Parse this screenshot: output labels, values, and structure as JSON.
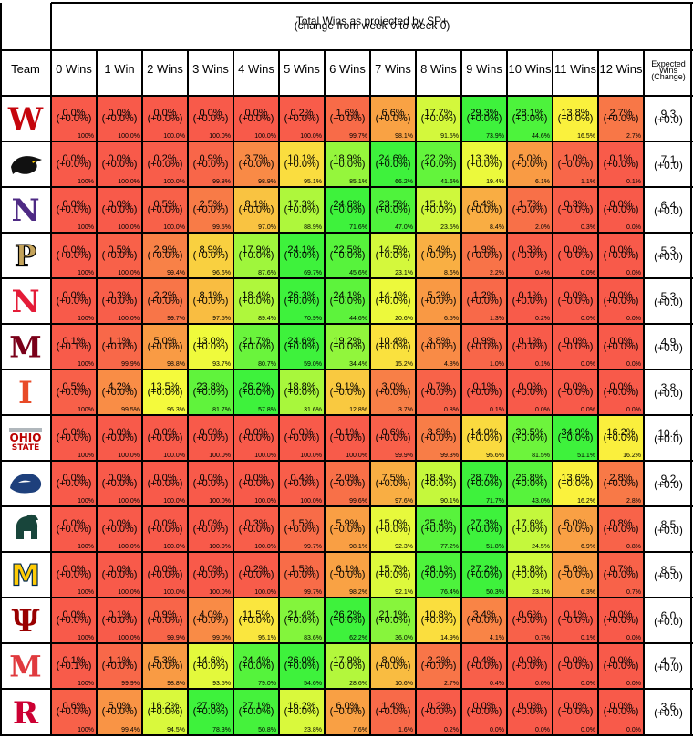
{
  "chart_data": {
    "type": "table",
    "title": "Total Wins as projected by SP+",
    "subtitle": "(change from week 0 to week 0)",
    "team_header": "Team",
    "expected_header": [
      "Expected",
      "Wins",
      "(Change)"
    ],
    "columns": [
      "0 Wins",
      "1 Win",
      "2 Wins",
      "3 Wins",
      "4 Wins",
      "5 Wins",
      "6 Wins",
      "7 Wins",
      "8 Wins",
      "9 Wins",
      "10 Wins",
      "11 Wins",
      "12 Wins"
    ],
    "colors": {
      "low": "#f85a4a",
      "high": "#3ef23c",
      "mid": "#fafa3c",
      "grid": "#000000",
      "background": "#ffffff"
    },
    "teams": [
      {
        "name": "Wisconsin",
        "logo": "W",
        "logo_color": "#c5050c",
        "logo_icon": "wisconsin-logo-icon",
        "pct": [
          "0.0%",
          "0.0%",
          "0.0%",
          "0.0%",
          "0.0%",
          "0.2%",
          "1.6%",
          "6.6%",
          "17.7%",
          "29.3%",
          "28.1%",
          "13.8%",
          "2.7%"
        ],
        "chg": [
          "(+0.0%)",
          "(+0.0%)",
          "(+0.0%)",
          "(+0.0%)",
          "(+0.0%)",
          "(+0.0%)",
          "(+0.0%)",
          "(+0.0%)",
          "(+0.0%)",
          "(+0.0%)",
          "(+0.0%)",
          "(+0.0%)",
          "(+0.0%)"
        ],
        "cum": [
          "100%",
          "100.0%",
          "100.0%",
          "100.0%",
          "100.0%",
          "100.0%",
          "99.7%",
          "98.1%",
          "91.5%",
          "73.9%",
          "44.6%",
          "16.5%",
          "2.7%"
        ],
        "values": [
          0.0,
          0.0,
          0.0,
          0.0,
          0.0,
          0.2,
          1.6,
          6.6,
          17.7,
          29.3,
          28.1,
          13.8,
          2.7
        ],
        "expected": "9.3",
        "expected_change": "(+0.0)"
      },
      {
        "name": "Iowa",
        "logo": "hawk",
        "logo_color": "#111111",
        "logo_icon": "iowa-hawkeye-logo-icon",
        "pct": [
          "0.0%",
          "0.0%",
          "0.2%",
          "0.9%",
          "3.7%",
          "10.1%",
          "18.9%",
          "24.6%",
          "22.2%",
          "13.3%",
          "5.0%",
          "1.0%",
          "0.1%"
        ],
        "chg": [
          "(+0.0%)",
          "(+0.0%)",
          "(+0.0%)",
          "(+0.0%)",
          "(+0.0%)",
          "(+0.0%)",
          "(+0.0%)",
          "(+0.0%)",
          "(+0.0%)",
          "(+0.0%)",
          "(+0.0%)",
          "(+0.0%)",
          "(+0.0%)"
        ],
        "cum": [
          "100%",
          "100.0%",
          "100.0%",
          "99.8%",
          "98.9%",
          "95.1%",
          "85.1%",
          "66.2%",
          "41.6%",
          "19.4%",
          "6.1%",
          "1.1%",
          "0.1%"
        ],
        "values": [
          0.0,
          0.0,
          0.2,
          0.9,
          3.7,
          10.1,
          18.9,
          24.6,
          22.2,
          13.3,
          5.0,
          1.0,
          0.1
        ],
        "expected": "7.1",
        "expected_change": "(+0.0)"
      },
      {
        "name": "Northwestern",
        "logo": "N",
        "logo_color": "#4e2a84",
        "logo_icon": "northwestern-logo-icon",
        "pct": [
          "0.0%",
          "0.0%",
          "0.5%",
          "2.5%",
          "8.1%",
          "17.3%",
          "24.6%",
          "23.5%",
          "15.1%",
          "6.4%",
          "1.7%",
          "0.3%",
          "0.0%"
        ],
        "chg": [
          "(+0.0%)",
          "(+0.0%)",
          "(+0.0%)",
          "(+0.0%)",
          "(+0.0%)",
          "(+0.0%)",
          "(+0.0%)",
          "(+0.0%)",
          "(+0.0%)",
          "(+0.0%)",
          "(+0.0%)",
          "(+0.0%)",
          "(+0.0%)"
        ],
        "cum": [
          "100%",
          "100.0%",
          "100.0%",
          "99.5%",
          "97.0%",
          "88.9%",
          "71.6%",
          "47.0%",
          "23.5%",
          "8.4%",
          "2.0%",
          "0.3%",
          "0.0%"
        ],
        "values": [
          0.0,
          0.0,
          0.5,
          2.5,
          8.1,
          17.3,
          24.6,
          23.5,
          15.1,
          6.4,
          1.7,
          0.3,
          0.0
        ],
        "expected": "6.4",
        "expected_change": "(+0.0)"
      },
      {
        "name": "Purdue",
        "logo": "P",
        "logo_color": "#c4a35a",
        "logo_icon": "purdue-logo-icon",
        "pct": [
          "0.0%",
          "0.5%",
          "2.9%",
          "8.9%",
          "17.9%",
          "24.1%",
          "22.5%",
          "14.5%",
          "6.4%",
          "1.9%",
          "0.3%",
          "0.0%",
          "0.0%"
        ],
        "chg": [
          "(+0.0%)",
          "(+0.0%)",
          "(+0.0%)",
          "(+0.0%)",
          "(+0.0%)",
          "(+0.0%)",
          "(+0.0%)",
          "(+0.0%)",
          "(+0.0%)",
          "(+0.0%)",
          "(+0.0%)",
          "(+0.0%)",
          "(+0.0%)"
        ],
        "cum": [
          "100%",
          "100.0%",
          "99.4%",
          "96.6%",
          "87.6%",
          "69.7%",
          "45.6%",
          "23.1%",
          "8.6%",
          "2.2%",
          "0.4%",
          "0.0%",
          "0.0%"
        ],
        "values": [
          0.0,
          0.5,
          2.9,
          8.9,
          17.9,
          24.1,
          22.5,
          14.5,
          6.4,
          1.9,
          0.3,
          0.0,
          0.0
        ],
        "expected": "5.3",
        "expected_change": "(+0.0)"
      },
      {
        "name": "Nebraska",
        "logo": "N",
        "logo_color": "#e41c38",
        "logo_icon": "nebraska-logo-icon",
        "pct": [
          "0.0%",
          "0.3%",
          "2.2%",
          "8.1%",
          "18.4%",
          "26.3%",
          "24.1%",
          "14.1%",
          "5.2%",
          "1.2%",
          "0.1%",
          "0.0%",
          "0.0%"
        ],
        "chg": [
          "(+0.0%)",
          "(+0.0%)",
          "(+0.0%)",
          "(+0.0%)",
          "(+0.0%)",
          "(+0.0%)",
          "(+0.0%)",
          "(+0.0%)",
          "(+0.0%)",
          "(+0.0%)",
          "(+0.0%)",
          "(+0.0%)",
          "(+0.0%)"
        ],
        "cum": [
          "100%",
          "100.0%",
          "99.7%",
          "97.5%",
          "89.4%",
          "70.9%",
          "44.6%",
          "20.6%",
          "6.5%",
          "1.3%",
          "0.2%",
          "0.0%",
          "0.0%"
        ],
        "values": [
          0.0,
          0.3,
          2.2,
          8.1,
          18.4,
          26.3,
          24.1,
          14.1,
          5.2,
          1.2,
          0.1,
          0.0,
          0.0
        ],
        "expected": "5.3",
        "expected_change": "(+0.0)"
      },
      {
        "name": "Minnesota",
        "logo": "M",
        "logo_color": "#7a0019",
        "logo_icon": "minnesota-logo-icon",
        "pct": [
          "0.1%",
          "1.1%",
          "5.0%",
          "13.0%",
          "21.7%",
          "24.6%",
          "19.2%",
          "10.4%",
          "3.8%",
          "0.9%",
          "0.1%",
          "0.0%",
          "0.0%"
        ],
        "chg": [
          "(+0.1%)",
          "(+0.0%)",
          "(+0.0%)",
          "(+0.0%)",
          "(+0.0%)",
          "(+0.0%)",
          "(+0.0%)",
          "(+0.0%)",
          "(+0.0%)",
          "(+0.0%)",
          "(+0.0%)",
          "(+0.0%)",
          "(+0.0%)"
        ],
        "cum": [
          "100%",
          "99.9%",
          "98.8%",
          "93.7%",
          "80.7%",
          "59.0%",
          "34.4%",
          "15.2%",
          "4.8%",
          "1.0%",
          "0.1%",
          "0.0%",
          "0.0%"
        ],
        "values": [
          0.1,
          1.1,
          5.0,
          13.0,
          21.7,
          24.6,
          19.2,
          10.4,
          3.8,
          0.9,
          0.1,
          0.0,
          0.0
        ],
        "expected": "4.9",
        "expected_change": "(+0.0)"
      },
      {
        "name": "Illinois",
        "logo": "I",
        "logo_color": "#e84a27",
        "logo_icon": "illinois-logo-icon",
        "pct": [
          "0.5%",
          "4.2%",
          "13.5%",
          "23.8%",
          "26.2%",
          "18.8%",
          "9.1%",
          "3.0%",
          "0.7%",
          "0.1%",
          "0.0%",
          "0.0%",
          "0.0%"
        ],
        "chg": [
          "(+0.0%)",
          "(+0.0%)",
          "(+0.0%)",
          "(+0.0%)",
          "(+0.0%)",
          "(+0.0%)",
          "(+0.0%)",
          "(+0.0%)",
          "(+0.0%)",
          "(+0.0%)",
          "(+0.0%)",
          "(+0.0%)",
          "(+0.0%)"
        ],
        "cum": [
          "100%",
          "99.5%",
          "95.3%",
          "81.7%",
          "57.8%",
          "31.6%",
          "12.8%",
          "3.7%",
          "0.8%",
          "0.1%",
          "0.0%",
          "0.0%",
          "0.0%"
        ],
        "values": [
          0.5,
          4.2,
          13.5,
          23.8,
          26.2,
          18.8,
          9.1,
          3.0,
          0.7,
          0.1,
          0.0,
          0.0,
          0.0
        ],
        "expected": "3.8",
        "expected_change": "(+0.0)"
      },
      {
        "name": "Ohio State",
        "logo": "OHIO STATE",
        "logo_color": "#bb0000",
        "logo_icon": "ohio-state-logo-icon",
        "pct": [
          "0.0%",
          "0.0%",
          "0.0%",
          "0.0%",
          "0.0%",
          "0.0%",
          "0.1%",
          "0.6%",
          "3.8%",
          "14.0%",
          "30.5%",
          "34.9%",
          "16.2%"
        ],
        "chg": [
          "(+0.0%)",
          "(+0.0%)",
          "(+0.0%)",
          "(+0.0%)",
          "(+0.0%)",
          "(+0.0%)",
          "(+0.0%)",
          "(+0.0%)",
          "(+0.0%)",
          "(+0.0%)",
          "(+0.0%)",
          "(+0.0%)",
          "(+0.0%)"
        ],
        "cum": [
          "100%",
          "100.0%",
          "100.0%",
          "100.0%",
          "100.0%",
          "100.0%",
          "100.0%",
          "99.9%",
          "99.3%",
          "95.6%",
          "81.5%",
          "51.1%",
          "16.2%"
        ],
        "values": [
          0.0,
          0.0,
          0.0,
          0.0,
          0.0,
          0.0,
          0.1,
          0.6,
          3.8,
          14.0,
          30.5,
          34.9,
          16.2
        ],
        "expected": "10.4",
        "expected_change": "(+0.0)"
      },
      {
        "name": "Penn State",
        "logo": "nittany",
        "logo_color": "#1e407c",
        "logo_icon": "penn-state-logo-icon",
        "pct": [
          "0.0%",
          "0.0%",
          "0.0%",
          "0.0%",
          "0.0%",
          "0.4%",
          "2.0%",
          "7.5%",
          "18.4%",
          "28.7%",
          "26.8%",
          "13.6%",
          "2.8%"
        ],
        "chg": [
          "(+0.0%)",
          "(+0.0%)",
          "(+0.0%)",
          "(+0.0%)",
          "(+0.0%)",
          "(+0.0%)",
          "(+0.0%)",
          "(+0.0%)",
          "(+0.0%)",
          "(+0.0%)",
          "(+0.0%)",
          "(+0.0%)",
          "(+0.0%)"
        ],
        "cum": [
          "100%",
          "100.0%",
          "100.0%",
          "100.0%",
          "100.0%",
          "100.0%",
          "99.6%",
          "97.6%",
          "90.1%",
          "71.7%",
          "43.0%",
          "16.2%",
          "2.8%"
        ],
        "values": [
          0.0,
          0.0,
          0.0,
          0.0,
          0.0,
          0.4,
          2.0,
          7.5,
          18.4,
          28.7,
          26.8,
          13.6,
          2.8
        ],
        "expected": "9.2",
        "expected_change": "(+0.0)"
      },
      {
        "name": "Michigan State",
        "logo": "spartan",
        "logo_color": "#18453b",
        "logo_icon": "michigan-state-logo-icon",
        "pct": [
          "0.0%",
          "0.0%",
          "0.0%",
          "0.0%",
          "0.3%",
          "1.5%",
          "5.9%",
          "15.0%",
          "25.4%",
          "27.3%",
          "17.6%",
          "6.0%",
          "0.8%"
        ],
        "chg": [
          "(+0.0%)",
          "(+0.0%)",
          "(+0.0%)",
          "(+0.0%)",
          "(+0.0%)",
          "(+0.0%)",
          "(+0.0%)",
          "(+0.0%)",
          "(+0.0%)",
          "(+0.0%)",
          "(+0.0%)",
          "(+0.0%)",
          "(+0.0%)"
        ],
        "cum": [
          "100%",
          "100.0%",
          "100.0%",
          "100.0%",
          "100.0%",
          "99.7%",
          "98.1%",
          "92.3%",
          "77.2%",
          "51.8%",
          "24.5%",
          "6.9%",
          "0.8%"
        ],
        "values": [
          0.0,
          0.0,
          0.0,
          0.0,
          0.3,
          1.5,
          5.9,
          15.0,
          25.4,
          27.3,
          17.6,
          6.0,
          0.8
        ],
        "expected": "8.5",
        "expected_change": "(+0.0)"
      },
      {
        "name": "Michigan",
        "logo": "M",
        "logo_color": "#ffcb05",
        "logo_stroke": "#00274c",
        "logo_icon": "michigan-logo-icon",
        "pct": [
          "0.0%",
          "0.0%",
          "0.0%",
          "0.0%",
          "0.2%",
          "1.5%",
          "6.1%",
          "15.7%",
          "26.1%",
          "27.2%",
          "16.8%",
          "5.6%",
          "0.7%"
        ],
        "chg": [
          "(+0.0%)",
          "(+0.0%)",
          "(+0.0%)",
          "(+0.0%)",
          "(+0.0%)",
          "(+0.0%)",
          "(+0.0%)",
          "(+0.0%)",
          "(+0.0%)",
          "(+0.0%)",
          "(+0.0%)",
          "(+0.0%)",
          "(+0.0%)"
        ],
        "cum": [
          "100%",
          "100.0%",
          "100.0%",
          "100.0%",
          "100.0%",
          "99.7%",
          "98.2%",
          "92.1%",
          "76.4%",
          "50.3%",
          "23.1%",
          "6.3%",
          "0.7%"
        ],
        "values": [
          0.0,
          0.0,
          0.0,
          0.0,
          0.2,
          1.5,
          6.1,
          15.7,
          26.1,
          27.2,
          16.8,
          5.6,
          0.7
        ],
        "expected": "8.5",
        "expected_change": "(+0.0)"
      },
      {
        "name": "Indiana",
        "logo": "IU",
        "logo_color": "#990000",
        "logo_icon": "indiana-logo-icon",
        "pct": [
          "0.0%",
          "0.1%",
          "0.9%",
          "4.0%",
          "11.5%",
          "21.4%",
          "26.2%",
          "21.1%",
          "10.8%",
          "3.4%",
          "0.6%",
          "0.1%",
          "0.0%"
        ],
        "chg": [
          "(+0.0%)",
          "(+0.0%)",
          "(+0.0%)",
          "(+0.0%)",
          "(+0.0%)",
          "(+0.0%)",
          "(+0.0%)",
          "(+0.0%)",
          "(+0.0%)",
          "(+0.0%)",
          "(+0.0%)",
          "(+0.0%)",
          "(+0.0%)"
        ],
        "cum": [
          "100%",
          "100.0%",
          "99.9%",
          "99.0%",
          "95.1%",
          "83.6%",
          "62.2%",
          "36.0%",
          "14.9%",
          "4.1%",
          "0.7%",
          "0.1%",
          "0.0%"
        ],
        "values": [
          0.0,
          0.1,
          0.9,
          4.0,
          11.5,
          21.4,
          26.2,
          21.1,
          10.8,
          3.4,
          0.6,
          0.1,
          0.0
        ],
        "expected": "6.0",
        "expected_change": "(+0.0)"
      },
      {
        "name": "Maryland",
        "logo": "M",
        "logo_color": "#e03a3e",
        "logo_icon": "maryland-logo-icon",
        "pct": [
          "0.1%",
          "1.1%",
          "5.3%",
          "14.6%",
          "24.4%",
          "26.0%",
          "17.9%",
          "8.0%",
          "2.2%",
          "0.4%",
          "0.0%",
          "0.0%",
          "0.0%"
        ],
        "chg": [
          "(+0.1%)",
          "(+0.0%)",
          "(+0.0%)",
          "(+0.0%)",
          "(+0.0%)",
          "(+0.0%)",
          "(+0.0%)",
          "(+0.0%)",
          "(+0.0%)",
          "(+0.0%)",
          "(+0.0%)",
          "(+0.0%)",
          "(+0.0%)"
        ],
        "cum": [
          "100%",
          "99.9%",
          "98.8%",
          "93.5%",
          "79.0%",
          "54.6%",
          "28.6%",
          "10.6%",
          "2.7%",
          "0.4%",
          "0.0%",
          "0.0%",
          "0.0%"
        ],
        "values": [
          0.1,
          1.1,
          5.3,
          14.6,
          24.4,
          26.0,
          17.9,
          8.0,
          2.2,
          0.4,
          0.0,
          0.0,
          0.0
        ],
        "expected": "4.7",
        "expected_change": "(+0.0)"
      },
      {
        "name": "Rutgers",
        "logo": "R",
        "logo_color": "#cc0033",
        "logo_icon": "rutgers-logo-icon",
        "pct": [
          "0.6%",
          "5.0%",
          "16.2%",
          "27.6%",
          "27.1%",
          "16.2%",
          "6.0%",
          "1.4%",
          "0.2%",
          "0.0%",
          "0.0%",
          "0.0%",
          "0.0%"
        ],
        "chg": [
          "(+0.0%)",
          "(+0.0%)",
          "(+0.0%)",
          "(+0.0%)",
          "(+0.0%)",
          "(+0.0%)",
          "(+0.0%)",
          "(+0.0%)",
          "(+0.0%)",
          "(+0.0%)",
          "(+0.0%)",
          "(+0.0%)",
          "(+0.0%)"
        ],
        "cum": [
          "100%",
          "99.4%",
          "94.5%",
          "78.3%",
          "50.8%",
          "23.8%",
          "7.6%",
          "1.6%",
          "0.2%",
          "0.0%",
          "0.0%",
          "0.0%",
          "0.0%"
        ],
        "values": [
          0.6,
          5.0,
          16.2,
          27.6,
          27.1,
          16.2,
          6.0,
          1.4,
          0.2,
          0.0,
          0.0,
          0.0,
          0.0
        ],
        "expected": "3.6",
        "expected_change": "(+0.0)"
      }
    ]
  }
}
